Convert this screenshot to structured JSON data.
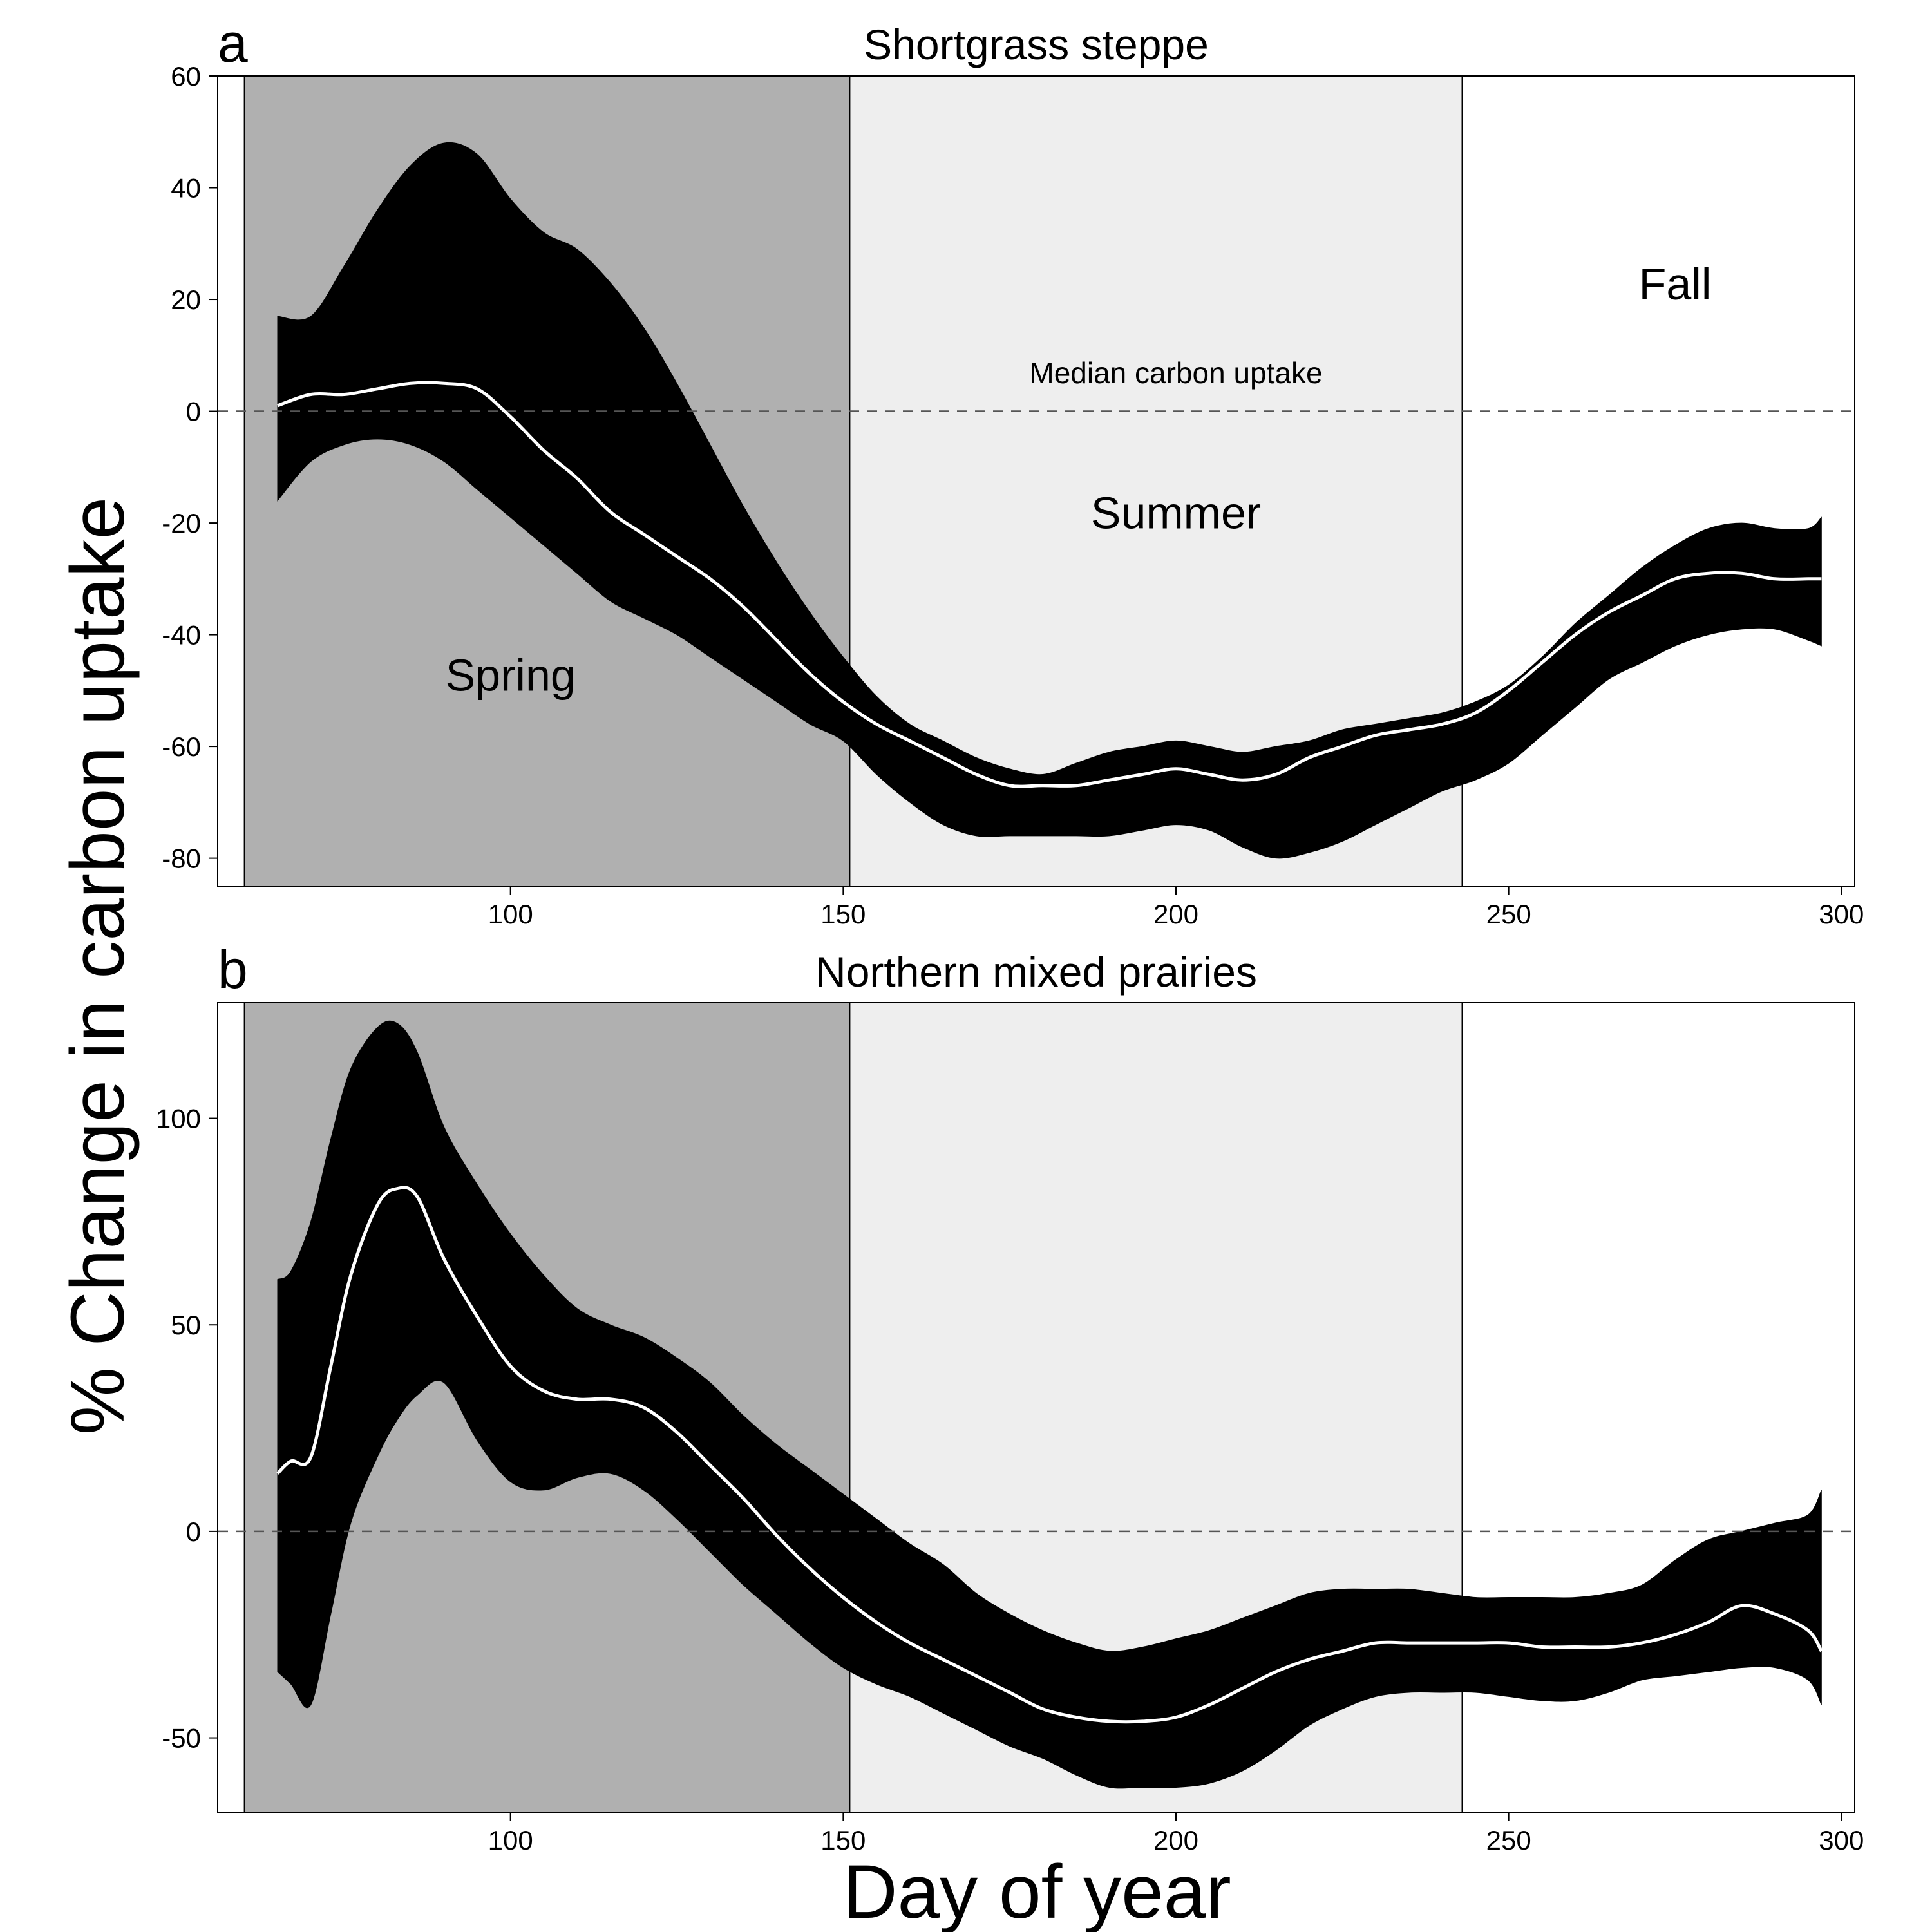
{
  "figure": {
    "ylabel": "% Change in carbon uptake",
    "xlabel": "Day of year",
    "colors": {
      "spring_bg": "#b0b0b0",
      "summer_bg": "#eeeeee",
      "fall_bg": "#ffffff",
      "band": "#000000",
      "median_line": "#ffffff",
      "zero_line": "#555555"
    }
  },
  "chart_data": [
    {
      "type": "area",
      "panel": "a",
      "title": "Shortgrass steppe",
      "xlim": [
        56,
        302
      ],
      "ylim": [
        -85,
        60
      ],
      "xticks": [
        100,
        150,
        200,
        250,
        300
      ],
      "yticks": [
        60,
        40,
        20,
        0,
        -20,
        -40,
        -60,
        -80
      ],
      "seasons": [
        {
          "name": "Spring",
          "start": 60,
          "end": 151
        },
        {
          "name": "Summer",
          "start": 151,
          "end": 243
        },
        {
          "name": "Fall",
          "start": 243,
          "end": 302
        }
      ],
      "season_labels": [
        {
          "text": "Spring",
          "x": 100,
          "y": -50
        },
        {
          "text": "Summer",
          "x": 200,
          "y": -21
        },
        {
          "text": "Fall",
          "x": 275,
          "y": 20
        }
      ],
      "annotation": {
        "text": "Median carbon uptake",
        "x": 200,
        "y": 5
      },
      "reference_line": 0,
      "x": [
        65,
        70,
        75,
        80,
        85,
        90,
        95,
        100,
        105,
        110,
        115,
        120,
        125,
        130,
        135,
        140,
        145,
        150,
        155,
        160,
        165,
        170,
        175,
        180,
        185,
        190,
        195,
        200,
        205,
        210,
        215,
        220,
        225,
        230,
        235,
        240,
        245,
        250,
        255,
        260,
        265,
        270,
        275,
        280,
        285,
        290,
        295,
        297
      ],
      "upper": [
        17,
        17,
        26,
        36,
        44,
        48,
        46,
        38,
        32,
        29,
        23,
        15,
        5,
        -6,
        -17,
        -27,
        -36,
        -44,
        -51,
        -56,
        -59,
        -62,
        -64,
        -65,
        -63,
        -61,
        -60,
        -59,
        -60,
        -61,
        -60,
        -59,
        -57,
        -56,
        -55,
        -54,
        -52,
        -49,
        -44,
        -38,
        -33,
        -28,
        -24,
        -21,
        -20,
        -21,
        -21,
        -19
      ],
      "median": [
        1,
        3,
        3,
        4,
        5,
        5,
        4,
        -1,
        -7,
        -12,
        -18,
        -22,
        -26,
        -30,
        -35,
        -41,
        -47,
        -52,
        -56,
        -59,
        -62,
        -65,
        -67,
        -67,
        -67,
        -66,
        -65,
        -64,
        -65,
        -66,
        -65,
        -62,
        -60,
        -58,
        -57,
        -56,
        -54,
        -50,
        -45,
        -40,
        -36,
        -33,
        -30,
        -29,
        -29,
        -30,
        -30,
        -30
      ],
      "lower": [
        -16,
        -9,
        -6,
        -5,
        -6,
        -9,
        -14,
        -19,
        -24,
        -29,
        -34,
        -37,
        -40,
        -44,
        -48,
        -52,
        -56,
        -59,
        -65,
        -70,
        -74,
        -76,
        -76,
        -76,
        -76,
        -76,
        -75,
        -74,
        -75,
        -78,
        -80,
        -79,
        -77,
        -74,
        -71,
        -68,
        -66,
        -63,
        -58,
        -53,
        -48,
        -45,
        -42,
        -40,
        -39,
        -39,
        -41,
        -42
      ]
    },
    {
      "type": "area",
      "panel": "b",
      "title": "Northern mixed prairies",
      "xlim": [
        56,
        302
      ],
      "ylim": [
        -68,
        128
      ],
      "xticks": [
        100,
        150,
        200,
        250,
        300
      ],
      "yticks": [
        100,
        50,
        0,
        -50
      ],
      "seasons": [
        {
          "name": "Spring",
          "start": 60,
          "end": 151
        },
        {
          "name": "Summer",
          "start": 151,
          "end": 243
        },
        {
          "name": "Fall",
          "start": 243,
          "end": 302
        }
      ],
      "reference_line": 0,
      "x": [
        65,
        67,
        70,
        73,
        76,
        80,
        83,
        86,
        90,
        95,
        100,
        105,
        110,
        115,
        120,
        125,
        130,
        135,
        140,
        145,
        150,
        155,
        160,
        165,
        170,
        175,
        180,
        185,
        190,
        195,
        200,
        205,
        210,
        215,
        220,
        225,
        230,
        235,
        240,
        245,
        250,
        255,
        260,
        265,
        270,
        275,
        280,
        285,
        290,
        295,
        297
      ],
      "upper": [
        61,
        63,
        75,
        95,
        112,
        122,
        123,
        116,
        98,
        84,
        72,
        62,
        54,
        50,
        47,
        42,
        36,
        28,
        21,
        15,
        9,
        3,
        -3,
        -8,
        -15,
        -20,
        -24,
        -27,
        -29,
        -28,
        -26,
        -24,
        -21,
        -18,
        -15,
        -14,
        -14,
        -14,
        -15,
        -16,
        -16,
        -16,
        -16,
        -15,
        -13,
        -7,
        -2,
        0,
        2,
        4,
        10
      ],
      "median": [
        14,
        17,
        18,
        40,
        62,
        79,
        83,
        81,
        66,
        52,
        40,
        34,
        32,
        32,
        30,
        24,
        16,
        8,
        -1,
        -9,
        -16,
        -22,
        -27,
        -31,
        -35,
        -39,
        -43,
        -45,
        -46,
        -46,
        -45,
        -42,
        -38,
        -34,
        -31,
        -29,
        -27,
        -27,
        -27,
        -27,
        -27,
        -28,
        -28,
        -28,
        -27,
        -25,
        -22,
        -18,
        -20,
        -24,
        -29
      ],
      "lower": [
        -34,
        -37,
        -42,
        -20,
        2,
        18,
        27,
        33,
        36,
        22,
        12,
        10,
        13,
        14,
        10,
        3,
        -5,
        -13,
        -20,
        -27,
        -33,
        -37,
        -40,
        -44,
        -48,
        -52,
        -55,
        -59,
        -62,
        -62,
        -62,
        -61,
        -58,
        -53,
        -47,
        -43,
        -40,
        -39,
        -39,
        -39,
        -40,
        -41,
        -41,
        -39,
        -36,
        -35,
        -34,
        -33,
        -33,
        -36,
        -42
      ]
    }
  ]
}
